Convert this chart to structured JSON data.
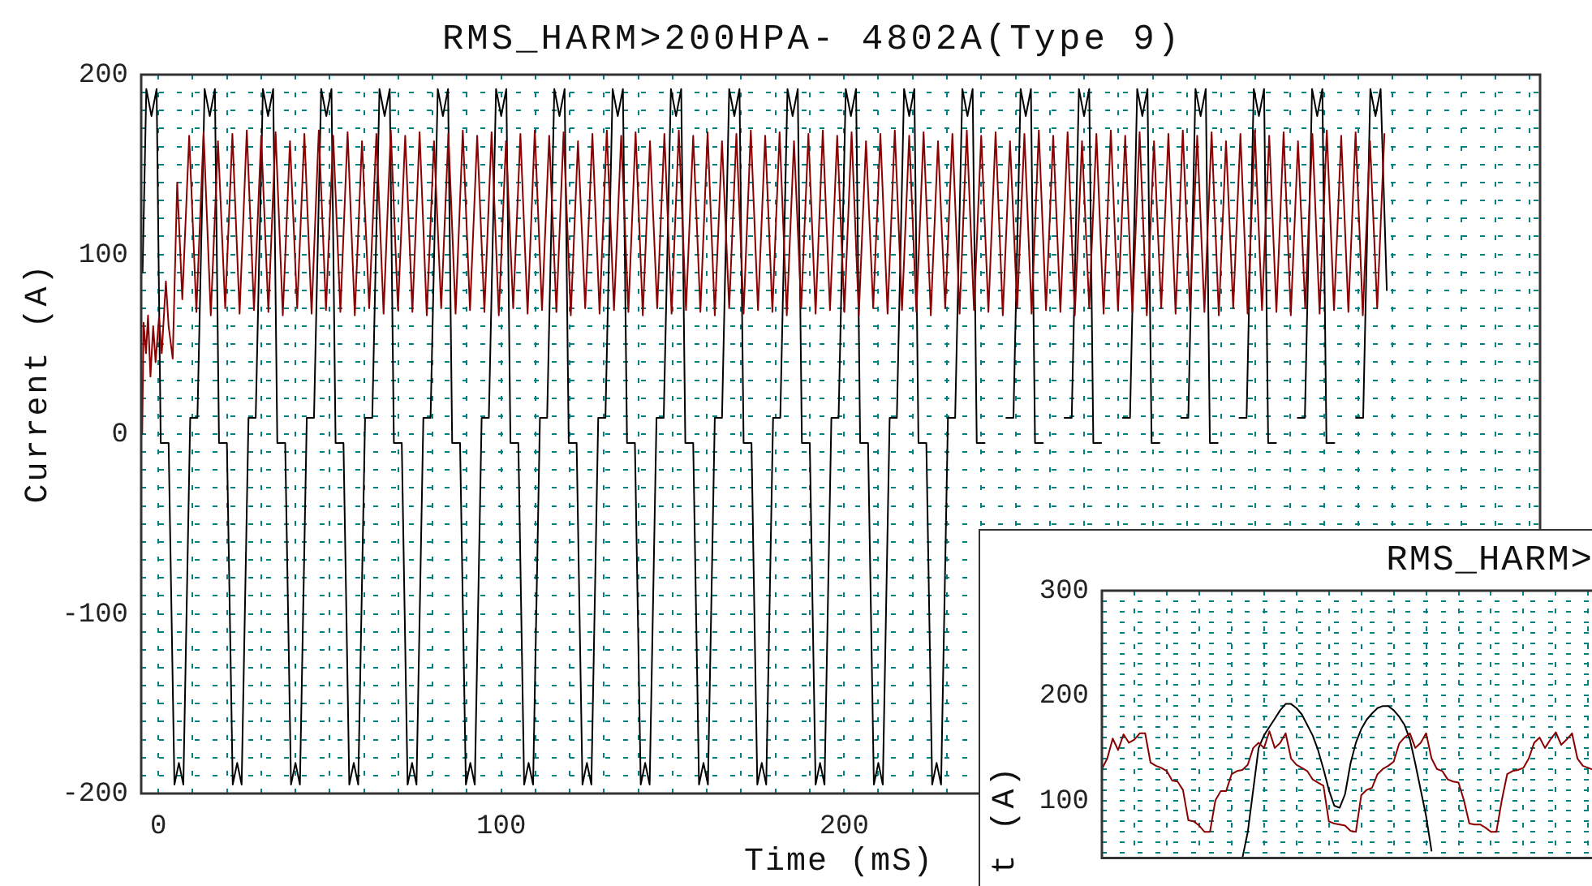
{
  "chart_data": [
    {
      "type": "line",
      "title": "RMS_HARM>200HPA- 4802A(Type 9)",
      "xlabel": "Time (mS)",
      "ylabel": "Current (A)",
      "xlim": [
        -5,
        403
      ],
      "ylim": [
        -200,
        200
      ],
      "xticks": [
        0,
        {
          "value": 10,
          "label": null
        },
        {
          "value": 20,
          "label": null
        },
        {
          "value": 30,
          "label": null
        },
        {
          "value": 40,
          "label": null
        },
        {
          "value": 50,
          "label": null
        },
        {
          "value": 60,
          "label": null
        },
        {
          "value": 70,
          "label": null
        },
        {
          "value": 80,
          "label": null
        },
        {
          "value": 90,
          "label": null
        },
        100,
        {
          "value": 110,
          "label": null
        },
        {
          "value": 120,
          "label": null
        },
        {
          "value": 130,
          "label": null
        },
        {
          "value": 140,
          "label": null
        },
        {
          "value": 150,
          "label": null
        },
        {
          "value": 160,
          "label": null
        },
        {
          "value": 170,
          "label": null
        },
        {
          "value": 180,
          "label": null
        },
        {
          "value": 190,
          "label": null
        },
        200,
        {
          "value": 210,
          "label": null
        },
        {
          "value": 220,
          "label": null
        },
        {
          "value": 230,
          "label": null
        },
        {
          "value": 240,
          "label": null
        },
        {
          "value": 250,
          "label": null
        },
        {
          "value": 260,
          "label": null
        },
        {
          "value": 270,
          "label": null
        },
        {
          "value": 280,
          "label": null
        },
        {
          "value": 290,
          "label": null
        },
        {
          "value": 300,
          "label": null
        },
        {
          "value": 310,
          "label": null
        },
        {
          "value": 320,
          "label": null
        },
        {
          "value": 330,
          "label": null
        },
        {
          "value": 340,
          "label": null
        },
        {
          "value": 350,
          "label": null
        },
        {
          "value": 360,
          "label": null
        },
        {
          "value": 370,
          "label": null
        },
        {
          "value": 380,
          "label": null
        },
        {
          "value": 390,
          "label": null
        },
        {
          "value": 400,
          "label": null
        }
      ],
      "yticks": [
        -200,
        {
          "value": -190,
          "label": null
        },
        {
          "value": -180,
          "label": null
        },
        {
          "value": -170,
          "label": null
        },
        {
          "value": -160,
          "label": null
        },
        {
          "value": -150,
          "label": null
        },
        {
          "value": -140,
          "label": null
        },
        {
          "value": -130,
          "label": null
        },
        {
          "value": -120,
          "label": null
        },
        {
          "value": -110,
          "label": null
        },
        -100,
        {
          "value": -90,
          "label": null
        },
        {
          "value": -80,
          "label": null
        },
        {
          "value": -70,
          "label": null
        },
        {
          "value": -60,
          "label": null
        },
        {
          "value": -50,
          "label": null
        },
        {
          "value": -40,
          "label": null
        },
        {
          "value": -30,
          "label": null
        },
        {
          "value": -20,
          "label": null
        },
        {
          "value": -10,
          "label": null
        },
        0,
        {
          "value": 10,
          "label": null
        },
        {
          "value": 20,
          "label": null
        },
        {
          "value": 30,
          "label": null
        },
        {
          "value": 40,
          "label": null
        },
        {
          "value": 50,
          "label": null
        },
        {
          "value": 60,
          "label": null
        },
        {
          "value": 70,
          "label": null
        },
        {
          "value": 80,
          "label": null
        },
        {
          "value": 90,
          "label": null
        },
        100,
        {
          "value": 110,
          "label": null
        },
        {
          "value": 120,
          "label": null
        },
        {
          "value": 130,
          "label": null
        },
        {
          "value": 140,
          "label": null
        },
        {
          "value": 150,
          "label": null
        },
        {
          "value": 160,
          "label": null
        },
        {
          "value": 170,
          "label": null
        },
        {
          "value": 180,
          "label": null
        },
        {
          "value": 190,
          "label": null
        },
        200
      ],
      "grid": true,
      "marker": "none",
      "series": [
        {
          "color": "#8b0000",
          "x": [
            -4.7,
            -4.3,
            -3.6,
            -3,
            -2.3,
            -1.5,
            -0.8,
            0.2,
            1,
            2.2,
            3,
            4.2,
            5.5,
            7,
            9,
            11.1,
            13.2,
            15.3,
            17.4,
            19.5,
            21.6,
            23.7,
            25.8,
            27.9,
            30,
            32.1,
            34.2,
            36.3,
            38.4,
            40.5,
            42.6,
            44.7,
            46.8,
            48.9,
            51,
            53.1,
            55.2,
            57.3,
            59.4,
            61.5,
            63.6,
            65.7,
            67.8,
            69.9,
            72,
            74.1,
            76.2,
            78.3,
            80.4,
            82.5,
            84.6,
            86.7,
            88.8,
            90.9,
            93,
            95.1,
            97.2,
            99.3,
            101.4,
            103.5,
            105.6,
            107.7,
            109.8,
            111.9,
            114,
            116.1,
            118.2,
            120.3,
            122.4,
            124.5,
            126.6,
            128.7,
            130.8,
            132.9,
            135,
            137.1,
            139.2,
            141.3,
            143.4,
            145.5,
            147.6,
            149.7,
            151.8,
            153.9,
            156,
            158.1,
            160.2,
            162.3,
            164.4,
            166.5,
            168.6,
            170.7,
            172.8,
            174.9,
            177,
            179.1,
            181.2,
            183.3,
            185.4,
            187.5,
            189.6,
            191.7,
            193.8,
            195.9,
            198,
            200.1,
            202.2,
            204.3,
            206.4,
            208.5,
            210.6,
            212.7,
            214.8,
            216.9,
            219,
            221.1,
            223.2,
            225.3,
            227.4,
            229.5,
            231.6,
            233.7,
            235.8,
            237.9,
            240,
            242.1,
            244.2,
            246.3,
            248.4,
            250.5,
            252.6,
            254.7,
            256.8,
            258.9,
            261,
            263.1,
            265.2,
            267.3,
            269.4,
            271.5,
            273.6,
            275.7,
            277.8,
            279.9,
            282,
            284.1,
            286.2,
            288.3,
            290.4,
            292.5,
            294.6,
            296.7,
            298.8,
            300.9,
            303,
            305.1,
            307.2,
            309.3,
            311.4,
            313.5,
            315.6,
            317.7,
            319.8,
            321.9,
            324,
            326.1,
            328.2,
            330.3,
            332.4,
            334.5,
            336.6,
            338.7,
            340.8,
            342.9,
            345,
            347.1,
            349.2,
            351.3,
            353.4,
            355.5,
            357.6
          ],
          "values": [
            0,
            62,
            45,
            66,
            32,
            60,
            40,
            65,
            45,
            85,
            60,
            42,
            140,
            75,
            166,
            68,
            168,
            66,
            163,
            70,
            167,
            67,
            169,
            69,
            166,
            68,
            168,
            66,
            163,
            70,
            167,
            67,
            169,
            69,
            166,
            68,
            168,
            66,
            163,
            70,
            167,
            67,
            169,
            69,
            166,
            68,
            168,
            66,
            163,
            70,
            167,
            67,
            169,
            69,
            166,
            68,
            168,
            66,
            163,
            70,
            167,
            67,
            169,
            69,
            166,
            68,
            168,
            66,
            163,
            70,
            167,
            67,
            169,
            69,
            166,
            68,
            168,
            66,
            163,
            70,
            167,
            67,
            169,
            69,
            166,
            68,
            168,
            66,
            163,
            70,
            167,
            67,
            169,
            69,
            166,
            68,
            168,
            66,
            163,
            70,
            167,
            67,
            169,
            69,
            166,
            68,
            168,
            66,
            163,
            70,
            167,
            67,
            169,
            69,
            166,
            68,
            168,
            66,
            163,
            70,
            167,
            67,
            169,
            69,
            166,
            68,
            168,
            66,
            163,
            70,
            167,
            67,
            169,
            69,
            166,
            68,
            168,
            66,
            163,
            70,
            167,
            67,
            169,
            69,
            166,
            68,
            168,
            66,
            163,
            70,
            167,
            67,
            169,
            69,
            166,
            68,
            168,
            66,
            163,
            70,
            167,
            67,
            169,
            69,
            166,
            68,
            168,
            66,
            163,
            70,
            167,
            67,
            169,
            69,
            166,
            68,
            168,
            66,
            163,
            70,
            167
          ]
        },
        {
          "color": "#000000",
          "x": [
            -4.6,
            -3.5,
            -2,
            -0.5,
            0.7,
            3,
            4.7,
            6,
            7.3,
            9.3,
            11.4,
            13.5,
            15,
            16.5,
            17.7,
            20,
            21.7,
            23,
            24.3,
            26.3,
            28.4,
            30.5,
            32,
            33.5,
            34.7,
            37,
            38.7,
            40,
            41.3,
            43.3,
            45.4,
            47.5,
            49,
            50.5,
            51.7,
            54,
            55.7,
            57,
            58.3,
            60.3,
            62.4,
            64.5,
            66,
            67.5,
            68.7,
            71,
            72.7,
            74,
            75.3,
            77.3,
            79.4,
            81.5,
            83,
            84.5,
            85.7,
            88,
            89.7,
            91,
            92.3,
            94.3,
            96.4,
            98.5,
            100,
            101.5,
            102.7,
            105,
            106.7,
            108,
            109.3,
            111.3,
            113.4,
            115.5,
            117,
            118.5,
            119.7,
            122,
            123.7,
            125,
            126.3,
            128.3,
            130.4,
            132.5,
            134,
            135.5,
            136.7,
            139,
            140.7,
            142,
            143.3,
            145.3,
            147.4,
            149.5,
            151,
            152.5,
            153.7,
            156,
            157.7,
            159,
            160.3,
            162.3,
            164.4,
            166.5,
            168,
            169.5,
            170.7,
            173,
            174.7,
            176,
            177.3,
            179.3,
            181.4,
            183.5,
            185,
            186.5,
            187.7,
            190,
            191.7,
            193,
            194.3,
            196.3,
            198.4,
            200.5,
            202,
            203.5,
            204.7,
            207,
            208.7,
            210,
            211.3,
            213.3,
            215.4,
            217.5,
            219,
            220.5,
            221.7,
            224,
            225.7,
            227,
            228.3,
            230.3,
            232.4,
            234.5,
            236,
            237.5,
            238.7,
            241,
            242.7,
            244,
            245.3,
            247.3,
            249.4,
            251.5,
            253,
            254.5,
            255.7,
            258,
            259.7,
            261,
            262.3,
            264.3,
            266.4,
            268.5,
            270,
            271.5,
            272.7,
            275,
            276.7,
            278,
            279.3,
            281.3,
            283.4,
            285.5,
            287,
            288.5,
            289.7,
            292,
            293.7,
            295,
            296.3,
            298.3,
            300.4,
            302.5,
            304,
            305.5,
            306.7,
            309,
            310.7,
            312,
            313.3,
            315.3,
            317.4,
            319.5,
            321,
            322.5,
            323.7,
            326,
            327.7,
            329,
            330.3,
            332.3,
            334.4,
            336.5,
            338,
            339.5,
            340.7,
            343,
            344.7,
            346,
            347.3,
            349.3,
            351.4,
            353.5,
            355,
            356.5,
            358.3
          ],
          "values": [
            90,
            192,
            177,
            192,
            -5,
            -5,
            -195,
            -183,
            -195,
            9,
            9,
            192,
            177,
            192,
            -5,
            -5,
            -195,
            -183,
            -195,
            9,
            9,
            192,
            177,
            192,
            -5,
            -5,
            -195,
            -183,
            -195,
            9,
            9,
            192,
            177,
            192,
            -5,
            -5,
            -195,
            -183,
            -195,
            9,
            9,
            192,
            177,
            192,
            -5,
            -5,
            -195,
            -183,
            -195,
            9,
            9,
            192,
            177,
            192,
            -5,
            -5,
            -195,
            -183,
            -195,
            9,
            9,
            192,
            177,
            192,
            -5,
            -5,
            -195,
            -183,
            -195,
            9,
            9,
            192,
            177,
            192,
            -5,
            -5,
            -195,
            -183,
            -195,
            9,
            9,
            192,
            177,
            192,
            -5,
            -5,
            -195,
            -183,
            -195,
            9,
            9,
            192,
            177,
            192,
            -5,
            -5,
            -195,
            -183,
            -195,
            9,
            9,
            192,
            177,
            192,
            -5,
            -5,
            -195,
            -183,
            -195,
            9,
            9,
            192,
            177,
            192,
            -5,
            -5,
            -195,
            -183,
            -195,
            9,
            9,
            192,
            177,
            192,
            -5,
            -5,
            -195,
            -183,
            -195,
            9,
            9,
            192,
            177,
            192,
            -5,
            -5,
            -195,
            -183,
            -195,
            9,
            9,
            192,
            177,
            192,
            -5,
            -5,
            null,
            null,
            null,
            9,
            9,
            192,
            177,
            192,
            -5,
            -5,
            null,
            null,
            null,
            9,
            9,
            192,
            177,
            192,
            -5,
            -5,
            null,
            null,
            null,
            9,
            9,
            192,
            177,
            192,
            -5,
            -5,
            null,
            null,
            null,
            9,
            9,
            192,
            177,
            192,
            -5,
            -5,
            null,
            null,
            null,
            9,
            9,
            192,
            177,
            192,
            -5,
            -5,
            null,
            null,
            null,
            9,
            9,
            192,
            177,
            192,
            -5,
            -5,
            null,
            null,
            null,
            9,
            9,
            192,
            177,
            192,
            80
          ]
        }
      ]
    },
    {
      "type": "line",
      "title": "RMS_HARM>",
      "ylabel": "t (A)",
      "ylim": [
        45,
        300
      ],
      "categories": [
        null,
        null,
        null,
        null,
        null,
        null,
        null,
        null,
        null,
        null,
        null,
        null,
        null,
        null,
        null,
        null,
        null,
        null,
        null,
        null,
        null,
        null,
        null,
        null,
        null,
        null,
        null,
        null,
        null,
        null,
        null,
        null,
        null,
        null,
        null,
        null,
        null,
        null,
        null,
        null,
        null,
        null,
        null,
        null,
        null,
        null,
        null,
        null,
        null,
        null,
        null,
        null,
        null,
        null,
        null,
        null,
        null,
        null,
        null,
        null,
        null,
        null,
        null,
        null,
        null,
        null,
        null,
        null,
        null,
        null,
        null,
        null,
        null,
        null,
        null,
        null,
        null,
        null,
        null,
        null,
        null,
        null,
        null,
        null,
        null,
        null,
        null,
        null,
        null,
        null,
        null,
        null
      ],
      "yticks": [
        {
          "value": 50,
          "label": null
        },
        {
          "value": 60,
          "label": null
        },
        {
          "value": 70,
          "label": null
        },
        {
          "value": 80,
          "label": null
        },
        {
          "value": 90,
          "label": null
        },
        100,
        {
          "value": 110,
          "label": null
        },
        {
          "value": 120,
          "label": null
        },
        {
          "value": 130,
          "label": null
        },
        {
          "value": 140,
          "label": null
        },
        {
          "value": 150,
          "label": null
        },
        {
          "value": 160,
          "label": null
        },
        {
          "value": 170,
          "label": null
        },
        {
          "value": 180,
          "label": null
        },
        {
          "value": 190,
          "label": null
        },
        200,
        {
          "value": 210,
          "label": null
        },
        {
          "value": 220,
          "label": null
        },
        {
          "value": 230,
          "label": null
        },
        {
          "value": 240,
          "label": null
        },
        {
          "value": 250,
          "label": null
        },
        {
          "value": 260,
          "label": null
        },
        {
          "value": 270,
          "label": null
        },
        {
          "value": 280,
          "label": null
        },
        {
          "value": 290,
          "label": null
        },
        300
      ],
      "grid": true,
      "marker": "none",
      "series": [
        {
          "color": "#8b0000",
          "values": [
            130,
            140,
            159,
            148,
            163,
            155,
            158,
            164,
            164,
            136,
            133,
            131,
            128,
            119,
            118,
            110,
            81,
            80,
            76,
            70,
            70,
            100,
            109,
            109,
            125,
            128,
            129,
            134,
            150,
            155,
            150,
            166,
            150,
            155,
            164,
            140,
            134,
            131,
            128,
            120,
            117,
            114,
            80,
            78,
            77,
            76,
            71,
            70,
            105,
            110,
            112,
            125,
            130,
            133,
            137,
            154,
            160,
            164,
            150,
            155,
            164,
            140,
            130,
            128,
            120,
            118,
            117,
            100,
            78,
            77,
            77,
            74,
            70,
            70,
            100,
            125,
            128,
            129,
            131,
            140,
            155,
            160,
            150,
            158,
            165,
            153,
            158,
            164,
            140,
            133,
            131,
            129
          ]
        },
        {
          "color": "#000000",
          "values": [
            null,
            null,
            null,
            null,
            null,
            null,
            null,
            null,
            null,
            null,
            null,
            null,
            null,
            null,
            null,
            null,
            null,
            null,
            null,
            null,
            null,
            null,
            null,
            null,
            null,
            null,
            45,
            70,
            110,
            150,
            162,
            170,
            178,
            186,
            192,
            192,
            188,
            182,
            172,
            162,
            148,
            130,
            110,
            95,
            93,
            106,
            135,
            155,
            168,
            177,
            183,
            188,
            190,
            190,
            186,
            180,
            172,
            158,
            135,
            110,
            85,
            52,
            null,
            null,
            null,
            null,
            null,
            null,
            null,
            null,
            null,
            null,
            null,
            null,
            null,
            null,
            null,
            null,
            null,
            null,
            null,
            null,
            null,
            null,
            null,
            null,
            null,
            null,
            null,
            null,
            null,
            null
          ]
        }
      ]
    }
  ]
}
